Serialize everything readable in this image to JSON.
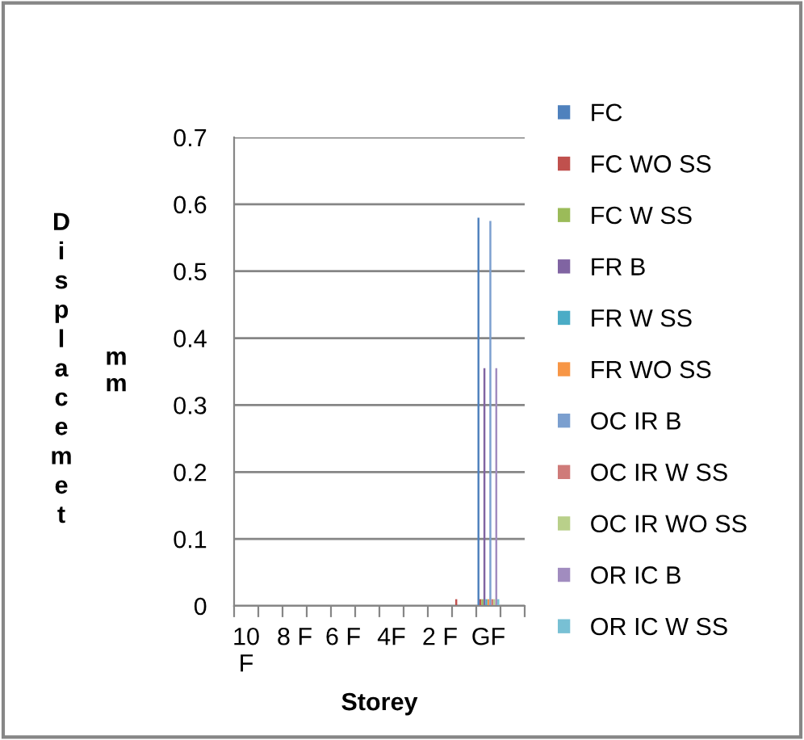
{
  "chart_data": {
    "type": "bar",
    "xlabel": "Storey",
    "ylabel": "Displacemet",
    "annotations": [
      "mm"
    ],
    "categories": [
      "10 F",
      null,
      "8 F",
      null,
      "6 F",
      null,
      "4F",
      null,
      "2 F",
      null,
      "GF",
      null
    ],
    "series": [
      {
        "name": "FC",
        "color": "#4f81bd",
        "values": [
          0,
          0,
          0,
          0,
          0,
          0,
          0,
          0,
          0,
          0,
          0.58,
          0
        ]
      },
      {
        "name": "FC WO SS",
        "color": "#c0504d",
        "values": [
          0,
          0,
          0,
          0,
          0,
          0,
          0,
          0,
          0,
          0.01,
          0.01,
          0
        ]
      },
      {
        "name": "FC W SS",
        "color": "#9bbb59",
        "values": [
          0,
          0,
          0,
          0,
          0,
          0,
          0,
          0,
          0,
          0,
          0.01,
          0
        ]
      },
      {
        "name": "FR B",
        "color": "#8064a2",
        "values": [
          0,
          0,
          0,
          0,
          0,
          0,
          0,
          0,
          0,
          0,
          0.355,
          0
        ]
      },
      {
        "name": "FR W SS",
        "color": "#4bacc6",
        "values": [
          0,
          0,
          0,
          0,
          0,
          0,
          0,
          0,
          0,
          0,
          0.01,
          0
        ]
      },
      {
        "name": "FR WO SS",
        "color": "#f79646",
        "values": [
          0,
          0,
          0,
          0,
          0,
          0,
          0,
          0,
          0,
          0,
          0.01,
          0
        ]
      },
      {
        "name": "OC IR B",
        "color": "#7b9fcf",
        "values": [
          0,
          0,
          0,
          0,
          0,
          0,
          0,
          0,
          0,
          0,
          0.575,
          0
        ]
      },
      {
        "name": "OC IR W SS",
        "color": "#cf7b79",
        "values": [
          0,
          0,
          0,
          0,
          0,
          0,
          0,
          0,
          0,
          0,
          0.01,
          0
        ]
      },
      {
        "name": "OC IR WO SS",
        "color": "#b9d08a",
        "values": [
          0,
          0,
          0,
          0,
          0,
          0,
          0,
          0,
          0,
          0,
          0.01,
          0
        ]
      },
      {
        "name": "OR IC B",
        "color": "#a18cbf",
        "values": [
          0,
          0,
          0,
          0,
          0,
          0,
          0,
          0,
          0,
          0,
          0.355,
          0
        ]
      },
      {
        "name": "OR IC W SS",
        "color": "#78c0d4",
        "values": [
          0,
          0,
          0,
          0,
          0,
          0,
          0,
          0,
          0,
          0,
          0.01,
          0
        ]
      }
    ],
    "ylim": [
      0,
      0.7
    ],
    "yticks": [
      0,
      0.1,
      0.2,
      0.3,
      0.4,
      0.5,
      0.6,
      0.7
    ],
    "grid": "y",
    "legend": "right"
  }
}
